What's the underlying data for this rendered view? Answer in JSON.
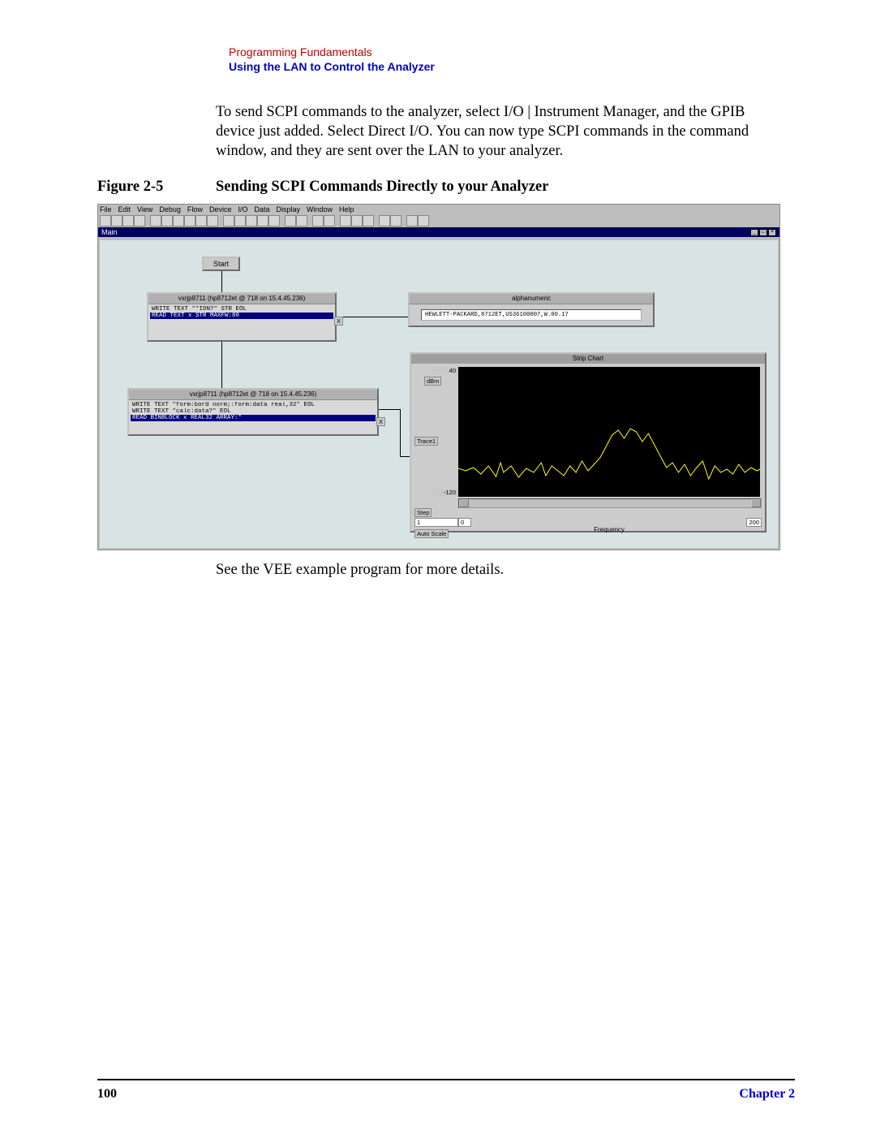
{
  "header": {
    "section": "Programming Fundamentals",
    "subsection": "Using the LAN to Control the Analyzer"
  },
  "body_paragraph": "To send SCPI commands to the analyzer, select I/O | Instrument Manager, and the GPIB device just added. Select Direct I/O. You can now type SCPI commands in the command window, and they are sent over the LAN to your analyzer.",
  "figure": {
    "label": "Figure 2-5",
    "title": "Sending SCPI Commands Directly to your Analyzer"
  },
  "vee_window": {
    "menus": [
      "File",
      "Edit",
      "View",
      "Debug",
      "Flow",
      "Device",
      "I/O",
      "Data",
      "Display",
      "Window",
      "Help"
    ],
    "main_title": "Main",
    "start_label": "Start",
    "box1": {
      "title": "vxrjp8711 (hp8712et @ 718 on 15.4.45.236)",
      "lines": [
        {
          "text": "WRITE TEXT \"*IDN?\" STR EOL",
          "selected": false
        },
        {
          "text": "READ TEXT x STR MAXFW:80",
          "selected": true
        }
      ],
      "pin_label": "X"
    },
    "box2": {
      "title": "vxrjp8711 (hp8712et @ 718 on 15.4.45.236)",
      "lines": [
        {
          "text": "WRITE TEXT \"form:bord norm;:form:data real,32\" EOL",
          "selected": false
        },
        {
          "text": "WRITE TEXT \"calc:data?\" EOL",
          "selected": false
        },
        {
          "text": "READ BINBLOCK x REAL32 ARRAY:*",
          "selected": true
        }
      ],
      "pin_label": "X"
    },
    "alpha": {
      "title": "alphanumeric",
      "value": "HEWLETT-PACKARD,8712ET,US36100007,W.00.17"
    },
    "strip": {
      "title": "Strip Chart",
      "ylabel": "dBm",
      "ytop": "40",
      "ybot": "-120",
      "trace": "Trace1",
      "step": "Step",
      "step_val": "1",
      "x_start": "0",
      "x_end": "200",
      "xlabel": "Frequency",
      "autoscale": "Auto Scale",
      "line_color": "#ffff00",
      "bg": "#000000",
      "y_range": [
        -120,
        40
      ],
      "x_range": [
        0,
        200
      ],
      "trace_points": [
        [
          0,
          -85
        ],
        [
          5,
          -88
        ],
        [
          10,
          -84
        ],
        [
          15,
          -92
        ],
        [
          20,
          -82
        ],
        [
          25,
          -95
        ],
        [
          28,
          -78
        ],
        [
          30,
          -90
        ],
        [
          35,
          -82
        ],
        [
          40,
          -96
        ],
        [
          45,
          -85
        ],
        [
          50,
          -90
        ],
        [
          55,
          -78
        ],
        [
          58,
          -94
        ],
        [
          62,
          -82
        ],
        [
          66,
          -88
        ],
        [
          70,
          -94
        ],
        [
          74,
          -82
        ],
        [
          78,
          -90
        ],
        [
          82,
          -76
        ],
        [
          86,
          -88
        ],
        [
          90,
          -80
        ],
        [
          94,
          -72
        ],
        [
          98,
          -58
        ],
        [
          102,
          -44
        ],
        [
          106,
          -38
        ],
        [
          110,
          -48
        ],
        [
          114,
          -36
        ],
        [
          118,
          -40
        ],
        [
          122,
          -52
        ],
        [
          126,
          -42
        ],
        [
          130,
          -56
        ],
        [
          134,
          -70
        ],
        [
          138,
          -84
        ],
        [
          142,
          -78
        ],
        [
          146,
          -90
        ],
        [
          150,
          -80
        ],
        [
          154,
          -94
        ],
        [
          158,
          -84
        ],
        [
          162,
          -76
        ],
        [
          166,
          -98
        ],
        [
          170,
          -82
        ],
        [
          174,
          -90
        ],
        [
          178,
          -86
        ],
        [
          182,
          -92
        ],
        [
          186,
          -80
        ],
        [
          190,
          -90
        ],
        [
          194,
          -84
        ],
        [
          198,
          -88
        ],
        [
          200,
          -86
        ]
      ]
    }
  },
  "post_figure_text": "See the VEE example program for more details.",
  "footer": {
    "page_number": "100",
    "chapter": "Chapter 2"
  }
}
